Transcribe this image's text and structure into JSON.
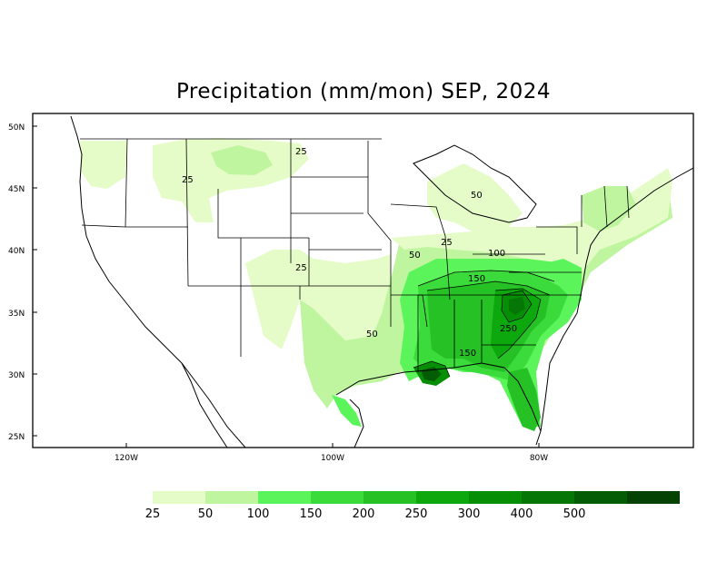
{
  "title": "Precipitation (mm/mon) SEP, 2024",
  "axes": {
    "lat_labels": [
      "50N",
      "45N",
      "40N",
      "35N",
      "30N",
      "25N"
    ],
    "lon_labels": [
      "120W",
      "100W",
      "80W"
    ]
  },
  "contour_labels": [
    "25",
    "25",
    "25",
    "50",
    "25",
    "50",
    "100",
    "150",
    "50",
    "250",
    "150"
  ],
  "legend": {
    "labels": [
      "25",
      "50",
      "100",
      "150",
      "200",
      "250",
      "300",
      "400",
      "500"
    ],
    "colors": [
      "#e6fcc8",
      "#bff59f",
      "#5bf55b",
      "#3bdb3b",
      "#25c125",
      "#0da80d",
      "#068e06",
      "#067606",
      "#045c04",
      "#034203"
    ]
  },
  "colors": {
    "frame": "#000000",
    "background": "#ffffff"
  }
}
